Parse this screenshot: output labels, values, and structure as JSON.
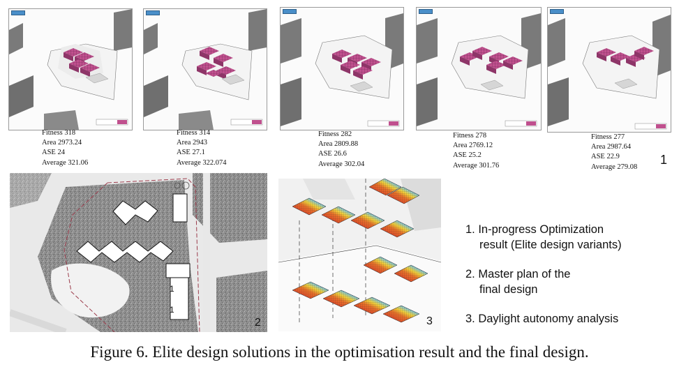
{
  "variants": [
    {
      "fitness": "Fitness 318",
      "area": "Area 2973.24",
      "ase": "ASE 24",
      "average": "Average 321.06"
    },
    {
      "fitness": "Fitness 314",
      "area": "Area 2943",
      "ase": "ASE 27.1",
      "average": "Average 322.074"
    },
    {
      "fitness": "Fitness 282",
      "area": "Area 2809.88",
      "ase": "ASE 26.6",
      "average": "Average 302.04"
    },
    {
      "fitness": "Fitness 278",
      "area": "Area 2769.12",
      "ase": "ASE 25.2",
      "average": "Average 301.76"
    },
    {
      "fitness": "Fitness 277",
      "area": "Area 2987.64",
      "ase": "ASE 22.9",
      "average": "Average 279.08"
    }
  ],
  "panel_numbers": {
    "p1": "1",
    "p2": "2",
    "p3": "3"
  },
  "legend": [
    {
      "line1": "1. In-progress Optimization",
      "line2": "result (Elite design variants)"
    },
    {
      "line1": "2. Master plan of the",
      "line2": "final design"
    },
    {
      "line1": "3. Daylight autonomy analysis",
      "line2": ""
    }
  ],
  "caption": "Figure 6. Elite design solutions in the optimisation result and the final design.",
  "colors": {
    "massing": "#c0508e",
    "heat_high": "#d8232a",
    "heat_low": "#2a5bd7",
    "buildings": "#7a7a7a"
  }
}
